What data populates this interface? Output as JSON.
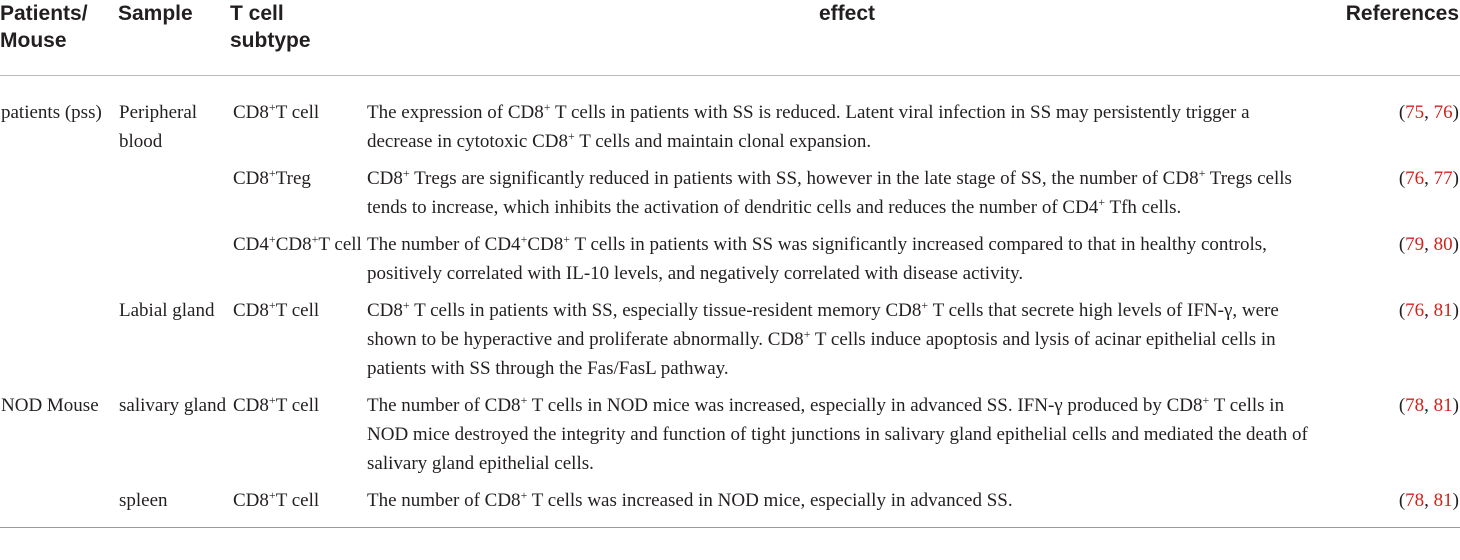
{
  "header": {
    "patients_mouse": "Patients/ Mouse",
    "sample": "Sample",
    "t_cell_subtype": "T cell subtype",
    "effect": "effect",
    "references": "References"
  },
  "rows": [
    {
      "patients": "patients (pss)",
      "sample": "Peripheral blood",
      "subtype": "CD8⁺T cell",
      "effect": "The expression of CD8⁺ T cells in patients with SS is reduced. Latent viral infection in SS may persistently trigger a decrease in cytotoxic CD8⁺ T cells and maintain clonal expansion.",
      "ref_a": "75",
      "ref_b": "76"
    },
    {
      "patients": "",
      "sample": "",
      "subtype": "CD8⁺Treg",
      "effect": "CD8⁺ Tregs are significantly reduced in patients with SS, however in the late stage of SS, the number of CD8⁺ Tregs cells tends to increase, which inhibits the activation of dendritic cells and reduces the number of CD4⁺ Tfh cells.",
      "ref_a": "76",
      "ref_b": "77"
    },
    {
      "patients": "",
      "sample": "",
      "subtype": "CD4⁺CD8⁺T cell",
      "effect": "The number of CD4⁺CD8⁺ T cells in patients with SS was significantly increased compared to that in healthy controls, positively correlated with IL-10 levels, and negatively correlated with disease activity.",
      "ref_a": "79",
      "ref_b": "80"
    },
    {
      "patients": "",
      "sample": "Labial gland",
      "subtype": "CD8⁺T cell",
      "effect": "CD8⁺ T cells in patients with SS, especially tissue-resident memory CD8⁺ T cells that secrete high levels of IFN-γ, were shown to be hyperactive and proliferate abnormally. CD8⁺ T cells induce apoptosis and lysis of acinar epithelial cells in patients with SS through the Fas/FasL pathway.",
      "ref_a": "76",
      "ref_b": "81"
    },
    {
      "patients": "NOD Mouse",
      "sample": "salivary gland",
      "subtype": "CD8⁺T cell",
      "effect": "The number of CD8⁺ T cells in NOD mice was increased, especially in advanced SS. IFN-γ produced by CD8⁺ T cells in NOD mice destroyed the integrity and function of tight junctions in salivary gland epithelial cells and mediated the death of salivary gland epithelial cells.",
      "ref_a": "78",
      "ref_b": "81"
    },
    {
      "patients": "",
      "sample": "spleen",
      "subtype": "CD8⁺T cell",
      "effect": "The number of CD8⁺ T cells was increased in NOD mice, especially in advanced SS.",
      "ref_a": "78",
      "ref_b": "81"
    }
  ]
}
